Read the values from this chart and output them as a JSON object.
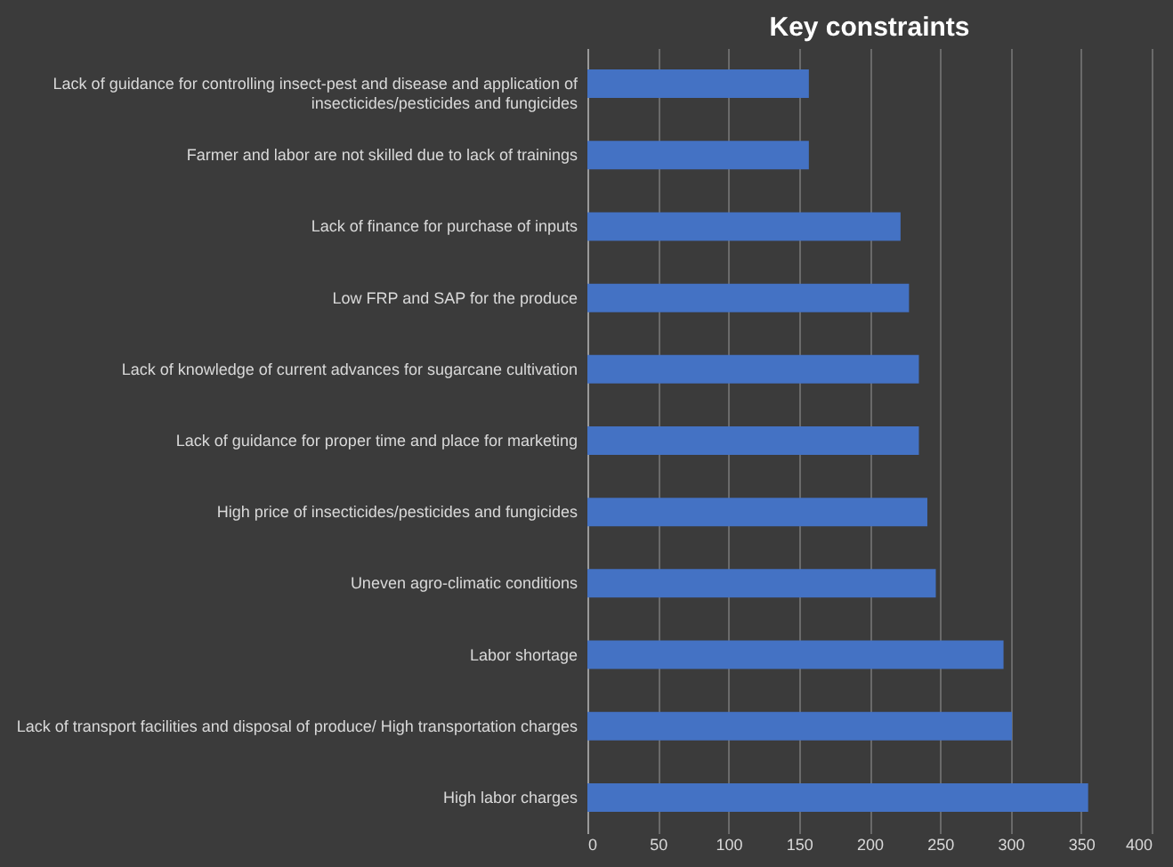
{
  "chart_data": {
    "type": "bar",
    "orientation": "horizontal",
    "title": "Key constraints",
    "categories": [
      "Lack of guidance for controlling insect-pest and disease and application of\ninsecticides/pesticides and fungicides",
      "Farmer and labor are not skilled due to lack of trainings",
      "Lack of finance for purchase of inputs",
      "Low FRP and SAP for the produce",
      "Lack of knowledge of current advances for sugarcane cultivation",
      "Lack of guidance for proper time and place for marketing",
      "High price of insecticides/pesticides and fungicides",
      "Uneven agro-climatic conditions",
      "Labor shortage",
      "Lack of transport facilities and disposal of produce/ High transportation charges",
      "High labor charges"
    ],
    "values": [
      157,
      157,
      222,
      228,
      235,
      235,
      241,
      247,
      295,
      301,
      355
    ],
    "color": "#4472c4",
    "xlim": [
      0,
      400
    ],
    "xticks": [
      0,
      50,
      100,
      150,
      200,
      250,
      300,
      350,
      400
    ],
    "grid": "x"
  }
}
